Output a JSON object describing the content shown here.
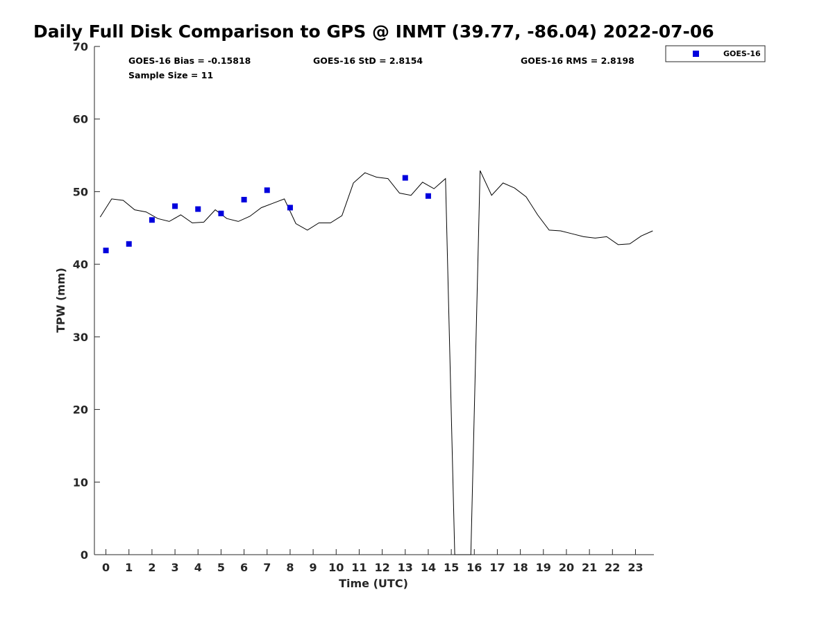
{
  "chart_data": {
    "type": "line",
    "title": "Daily Full Disk Comparison to GPS @ INMT (39.77, -86.04) 2022-07-06",
    "xlabel": "Time (UTC)",
    "ylabel": "TPW (mm)",
    "xlim": [
      -0.5,
      23.8
    ],
    "ylim": [
      0,
      70
    ],
    "x_ticks": [
      0,
      1,
      2,
      3,
      4,
      5,
      6,
      7,
      8,
      9,
      10,
      11,
      12,
      13,
      14,
      15,
      16,
      17,
      18,
      19,
      20,
      21,
      22,
      23
    ],
    "y_ticks": [
      0,
      10,
      20,
      30,
      40,
      50,
      60,
      70
    ],
    "grid": false,
    "legend_position": "outside top-right",
    "stats": {
      "bias": "GOES-16 Bias = -0.15818",
      "std": "GOES-16 StD = 2.8154",
      "rms": "GOES-16 RMS = 2.8198",
      "sample": "Sample Size = 11"
    },
    "series": [
      {
        "kind": "line",
        "color": "#000000",
        "x": [
          -0.25,
          0.25,
          0.75,
          1.25,
          1.75,
          2.25,
          2.75,
          3.25,
          3.75,
          4.25,
          4.75,
          5.25,
          5.75,
          6.25,
          6.75,
          7.25,
          7.75,
          8.25,
          8.75,
          9.25,
          9.75,
          10.25,
          10.75,
          11.25,
          11.75,
          12.25,
          12.75,
          13.25,
          13.75,
          14.25,
          14.75,
          15.15,
          15.85,
          16.25,
          16.75,
          17.25,
          17.75,
          18.25,
          18.75,
          19.25,
          19.75,
          20.25,
          20.75,
          21.25,
          21.75,
          22.25,
          22.75,
          23.25,
          23.75
        ],
        "y": [
          46.5,
          49.0,
          48.8,
          47.5,
          47.2,
          46.3,
          45.9,
          46.8,
          45.7,
          45.8,
          47.5,
          46.3,
          45.9,
          46.6,
          47.8,
          48.4,
          49.0,
          45.6,
          44.7,
          45.7,
          45.7,
          46.7,
          51.2,
          52.6,
          52.0,
          51.8,
          49.8,
          49.5,
          51.3,
          50.4,
          51.8,
          0,
          0,
          52.9,
          49.5,
          51.2,
          50.5,
          49.3,
          46.8,
          44.7,
          44.6,
          44.2,
          43.8,
          43.6,
          43.8,
          42.7,
          42.8,
          43.9,
          44.6
        ]
      },
      {
        "name": "GOES-16",
        "kind": "scatter",
        "color": "#0000dd",
        "x": [
          0,
          1,
          2,
          3,
          4,
          5,
          6,
          7,
          8,
          13,
          14
        ],
        "y": [
          41.9,
          42.8,
          46.1,
          48.0,
          47.6,
          47.0,
          48.9,
          50.2,
          47.8,
          51.9,
          49.4
        ]
      }
    ]
  }
}
